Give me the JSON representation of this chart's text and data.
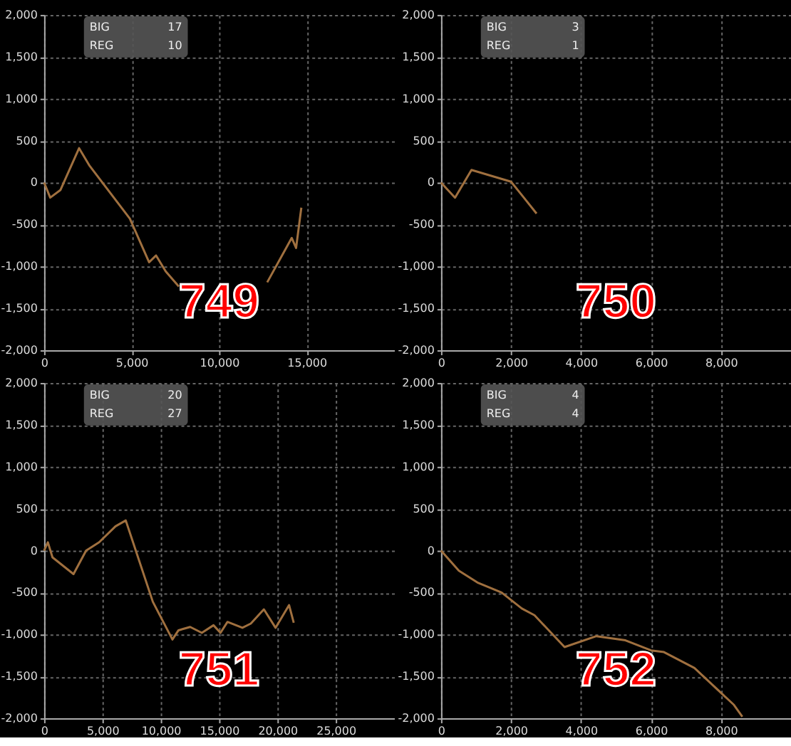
{
  "chart_data": [
    {
      "type": "line",
      "color": "#a0703f",
      "grid": true,
      "xlim": [
        0,
        20000
      ],
      "xticks": [
        0,
        {
          "value": 5000,
          "label": "5,000"
        },
        {
          "value": 10000,
          "label": "10,000"
        },
        {
          "value": 15000,
          "label": "15,000"
        }
      ],
      "ylim": [
        -2000,
        2000
      ],
      "yticks": [
        {
          "value": -2000,
          "label": "-2,000"
        },
        {
          "value": -1500,
          "label": "-1,500"
        },
        {
          "value": -1000,
          "label": "-1,000"
        },
        -500,
        0,
        500,
        {
          "value": 1000,
          "label": "1,000"
        },
        {
          "value": 1500,
          "label": "1,500"
        },
        {
          "value": 2000,
          "label": "2,000"
        }
      ],
      "x": [
        0,
        350,
        930,
        2000,
        2600,
        4900,
        6000,
        6400,
        6950,
        7700,
        10000,
        12750,
        14150,
        14400,
        14700
      ],
      "values": [
        0,
        -180,
        -90,
        410,
        200,
        -430,
        -950,
        -870,
        -1060,
        -1240,
        null,
        -1190,
        -660,
        -780,
        -300
      ],
      "annotations": [
        "BIG",
        "17",
        "REG",
        "10",
        "749"
      ]
    },
    {
      "type": "line",
      "color": "#a0703f",
      "grid": true,
      "xlim": [
        0,
        10000
      ],
      "xticks": [
        0,
        {
          "value": 2000,
          "label": "2,000"
        },
        {
          "value": 4000,
          "label": "4,000"
        },
        {
          "value": 6000,
          "label": "6,000"
        },
        {
          "value": 8000,
          "label": "8,000"
        }
      ],
      "ylim": [
        -2000,
        2000
      ],
      "yticks": [
        {
          "value": -2000,
          "label": "-2,000"
        },
        {
          "value": -1500,
          "label": "-1,500"
        },
        {
          "value": -1000,
          "label": "-1,000"
        },
        -500,
        0,
        500,
        {
          "value": 1000,
          "label": "1,000"
        },
        {
          "value": 1500,
          "label": "1,500"
        },
        {
          "value": 2000,
          "label": "2,000"
        }
      ],
      "x": [
        0,
        400,
        870,
        2000,
        2330,
        2730
      ],
      "values": [
        0,
        -180,
        150,
        10,
        -160,
        -370
      ],
      "annotations": [
        "BIG",
        "3",
        "REG",
        "1",
        "750"
      ]
    },
    {
      "type": "line",
      "color": "#a0703f",
      "grid": true,
      "xlim": [
        0,
        30000
      ],
      "xticks": [
        0,
        {
          "value": 5000,
          "label": "5,000"
        },
        {
          "value": 10000,
          "label": "10,000"
        },
        {
          "value": 15000,
          "label": "15,000"
        },
        {
          "value": 20000,
          "label": "20,000"
        },
        {
          "value": 25000,
          "label": "25,000"
        }
      ],
      "ylim": [
        -2000,
        2000
      ],
      "yticks": [
        {
          "value": -2000,
          "label": "-2,000"
        },
        {
          "value": -1500,
          "label": "-1,500"
        },
        {
          "value": -1000,
          "label": "-1,000"
        },
        -500,
        0,
        500,
        {
          "value": 1000,
          "label": "1,000"
        },
        {
          "value": 1500,
          "label": "1,500"
        },
        {
          "value": 2000,
          "label": "2,000"
        }
      ],
      "x": [
        0,
        320,
        720,
        2520,
        3600,
        4720,
        6120,
        7000,
        9320,
        11000,
        11520,
        12520,
        13520,
        14520,
        15120,
        15720,
        17000,
        17720,
        18840,
        19840,
        21000,
        21400
      ],
      "values": [
        0,
        100,
        -80,
        -280,
        0,
        100,
        290,
        360,
        -610,
        -1060,
        -950,
        -910,
        -980,
        -890,
        -980,
        -850,
        -920,
        -870,
        -700,
        -920,
        -650,
        -860
      ],
      "annotations": [
        "BIG",
        "20",
        "REG",
        "27",
        "751"
      ]
    },
    {
      "type": "line",
      "color": "#a0703f",
      "grid": true,
      "xlim": [
        0,
        10000
      ],
      "xticks": [
        0,
        {
          "value": 2000,
          "label": "2,000"
        },
        {
          "value": 4000,
          "label": "4,000"
        },
        {
          "value": 6000,
          "label": "6,000"
        },
        {
          "value": 8000,
          "label": "8,000"
        }
      ],
      "ylim": [
        -2000,
        2000
      ],
      "yticks": [
        {
          "value": -2000,
          "label": "-2,000"
        },
        {
          "value": -1500,
          "label": "-1,500"
        },
        {
          "value": -1000,
          "label": "-1,000"
        },
        -500,
        0,
        500,
        {
          "value": 1000,
          "label": "1,000"
        },
        {
          "value": 1500,
          "label": "1,500"
        },
        {
          "value": 2000,
          "label": "2,000"
        }
      ],
      "x": [
        0,
        510,
        1040,
        1730,
        2310,
        2670,
        3530,
        4440,
        5270,
        6000,
        6370,
        7240,
        8370,
        8610
      ],
      "values": [
        0,
        -240,
        -380,
        -500,
        -690,
        -770,
        -1150,
        -1020,
        -1070,
        -1190,
        -1210,
        -1400,
        -1840,
        -1980
      ],
      "annotations": [
        "BIG",
        "4",
        "REG",
        "4",
        "752"
      ]
    }
  ]
}
